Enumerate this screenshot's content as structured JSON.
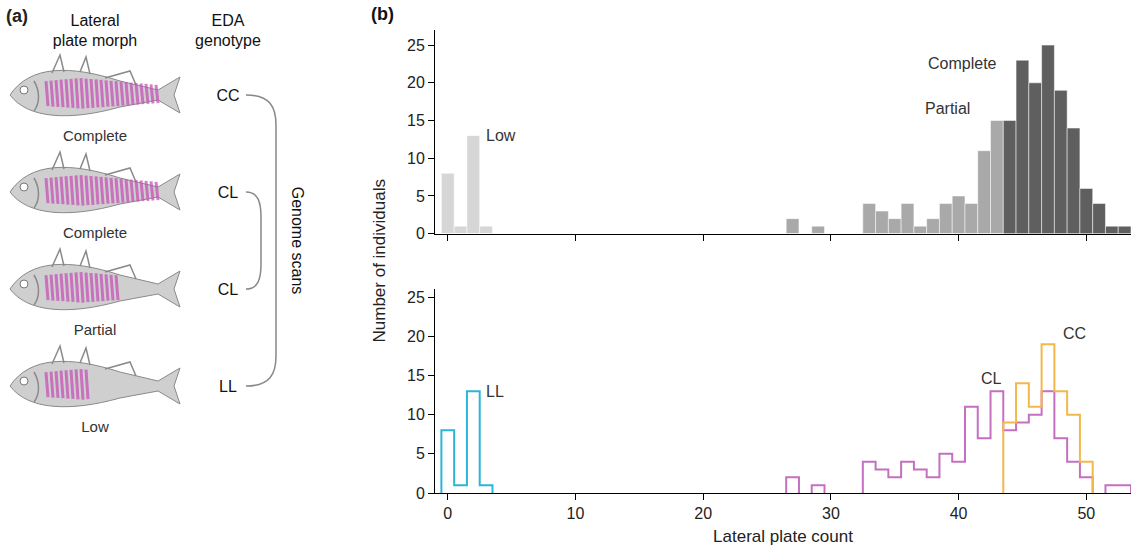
{
  "panel_a": {
    "panel_label": "(a)",
    "headers": [
      "Lateral plate morph",
      "EDA genotype"
    ],
    "rows": [
      {
        "morph": "Complete",
        "genotype": "CC"
      },
      {
        "morph": "Complete",
        "genotype": "CL"
      },
      {
        "morph": "Partial",
        "genotype": "CL"
      },
      {
        "morph": "Low",
        "genotype": "LL"
      }
    ],
    "bracket_label": "Genome scans"
  },
  "chart_data": [
    {
      "type": "bar",
      "panel_label": "(b)",
      "ylabel": "Number of individuals",
      "bins": [
        -0.5,
        0.5,
        1.5,
        2.5,
        3.5,
        4.5,
        5.5,
        6.5,
        7.5,
        8.5,
        9.5,
        10.5,
        11.5,
        12.5,
        13.5,
        14.5,
        15.5,
        16.5,
        17.5,
        18.5,
        19.5,
        20.5,
        21.5,
        22.5,
        23.5,
        24.5,
        25.5,
        26.5,
        27.5,
        28.5,
        29.5,
        30.5,
        31.5,
        32.5,
        33.5,
        34.5,
        35.5,
        36.5,
        37.5,
        38.5,
        39.5,
        40.5,
        41.5,
        42.5,
        43.5,
        44.5,
        45.5,
        46.5,
        47.5,
        48.5,
        49.5,
        50.5,
        51.5,
        52.5,
        53.5
      ],
      "xlim": [
        -1,
        53.5
      ],
      "xticks": [
        0,
        10,
        20,
        30,
        40,
        50
      ],
      "ylim": [
        0,
        27
      ],
      "yticks": [
        0,
        5,
        10,
        15,
        20,
        25
      ],
      "tick_labels": "y",
      "series": [
        {
          "name": "Low",
          "color": "#d6d6d6",
          "values": [
            8,
            1,
            13,
            1,
            0,
            0,
            0,
            0,
            0,
            0,
            0,
            0,
            0,
            0,
            0,
            0,
            0,
            0,
            0,
            0,
            0,
            0,
            0,
            0,
            0,
            0,
            0,
            0,
            0,
            0,
            0,
            0,
            0,
            0,
            0,
            0,
            0,
            0,
            0,
            0,
            0,
            0,
            0,
            0,
            0,
            0,
            0,
            0,
            0,
            0,
            0,
            0,
            0,
            0
          ]
        },
        {
          "name": "Partial",
          "color": "#a9a9a9",
          "values": [
            0,
            0,
            0,
            0,
            0,
            0,
            0,
            0,
            0,
            0,
            0,
            0,
            0,
            0,
            0,
            0,
            0,
            0,
            0,
            0,
            0,
            0,
            0,
            0,
            0,
            0,
            0,
            2,
            0,
            1,
            0,
            0,
            0,
            4,
            3,
            2,
            4,
            1,
            2,
            4,
            5,
            4,
            11,
            15,
            0,
            0,
            0,
            0,
            0,
            0,
            0,
            0,
            0,
            0
          ]
        },
        {
          "name": "Complete",
          "color": "#5f5f5f",
          "values": [
            0,
            0,
            0,
            0,
            0,
            0,
            0,
            0,
            0,
            0,
            0,
            0,
            0,
            0,
            0,
            0,
            0,
            0,
            0,
            0,
            0,
            0,
            0,
            0,
            0,
            0,
            0,
            0,
            0,
            0,
            0,
            0,
            0,
            0,
            0,
            0,
            0,
            0,
            0,
            0,
            0,
            0,
            0,
            0,
            15,
            23,
            20,
            25,
            19,
            14,
            6,
            4,
            1,
            1
          ]
        }
      ]
    },
    {
      "type": "step",
      "xlabel": "Lateral plate count",
      "bins": [
        -0.5,
        0.5,
        1.5,
        2.5,
        3.5,
        4.5,
        5.5,
        6.5,
        7.5,
        8.5,
        9.5,
        10.5,
        11.5,
        12.5,
        13.5,
        14.5,
        15.5,
        16.5,
        17.5,
        18.5,
        19.5,
        20.5,
        21.5,
        22.5,
        23.5,
        24.5,
        25.5,
        26.5,
        27.5,
        28.5,
        29.5,
        30.5,
        31.5,
        32.5,
        33.5,
        34.5,
        35.5,
        36.5,
        37.5,
        38.5,
        39.5,
        40.5,
        41.5,
        42.5,
        43.5,
        44.5,
        45.5,
        46.5,
        47.5,
        48.5,
        49.5,
        50.5,
        51.5,
        52.5,
        53.5
      ],
      "xlim": [
        -1,
        53.5
      ],
      "xticks": [
        0,
        10,
        20,
        30,
        40,
        50
      ],
      "ylim": [
        0,
        26
      ],
      "yticks": [
        0,
        5,
        10,
        15,
        20,
        25
      ],
      "series": [
        {
          "name": "LL",
          "color": "#2bb5d8",
          "values": [
            8,
            1,
            13,
            1,
            0,
            0,
            0,
            0,
            0,
            0,
            0,
            0,
            0,
            0,
            0,
            0,
            0,
            0,
            0,
            0,
            0,
            0,
            0,
            0,
            0,
            0,
            0,
            0,
            0,
            0,
            0,
            0,
            0,
            0,
            0,
            0,
            0,
            0,
            0,
            0,
            0,
            0,
            0,
            0,
            0,
            0,
            0,
            0,
            0,
            0,
            0,
            0,
            0,
            0
          ]
        },
        {
          "name": "CL",
          "color": "#c46fc0",
          "values": [
            0,
            0,
            0,
            0,
            0,
            0,
            0,
            0,
            0,
            0,
            0,
            0,
            0,
            0,
            0,
            0,
            0,
            0,
            0,
            0,
            0,
            0,
            0,
            0,
            0,
            0,
            0,
            2,
            0,
            1,
            0,
            0,
            0,
            4,
            3,
            2,
            4,
            3,
            2,
            5,
            4,
            11,
            7,
            13,
            8,
            9,
            10,
            13,
            7,
            4,
            2,
            0,
            1,
            1
          ]
        },
        {
          "name": "CC",
          "color": "#f2b84b",
          "values": [
            0,
            0,
            0,
            0,
            0,
            0,
            0,
            0,
            0,
            0,
            0,
            0,
            0,
            0,
            0,
            0,
            0,
            0,
            0,
            0,
            0,
            0,
            0,
            0,
            0,
            0,
            0,
            0,
            0,
            0,
            0,
            0,
            0,
            0,
            0,
            0,
            0,
            0,
            0,
            0,
            0,
            0,
            0,
            0,
            9,
            14,
            11,
            19,
            13,
            10,
            4,
            0,
            0,
            0
          ]
        }
      ]
    }
  ]
}
